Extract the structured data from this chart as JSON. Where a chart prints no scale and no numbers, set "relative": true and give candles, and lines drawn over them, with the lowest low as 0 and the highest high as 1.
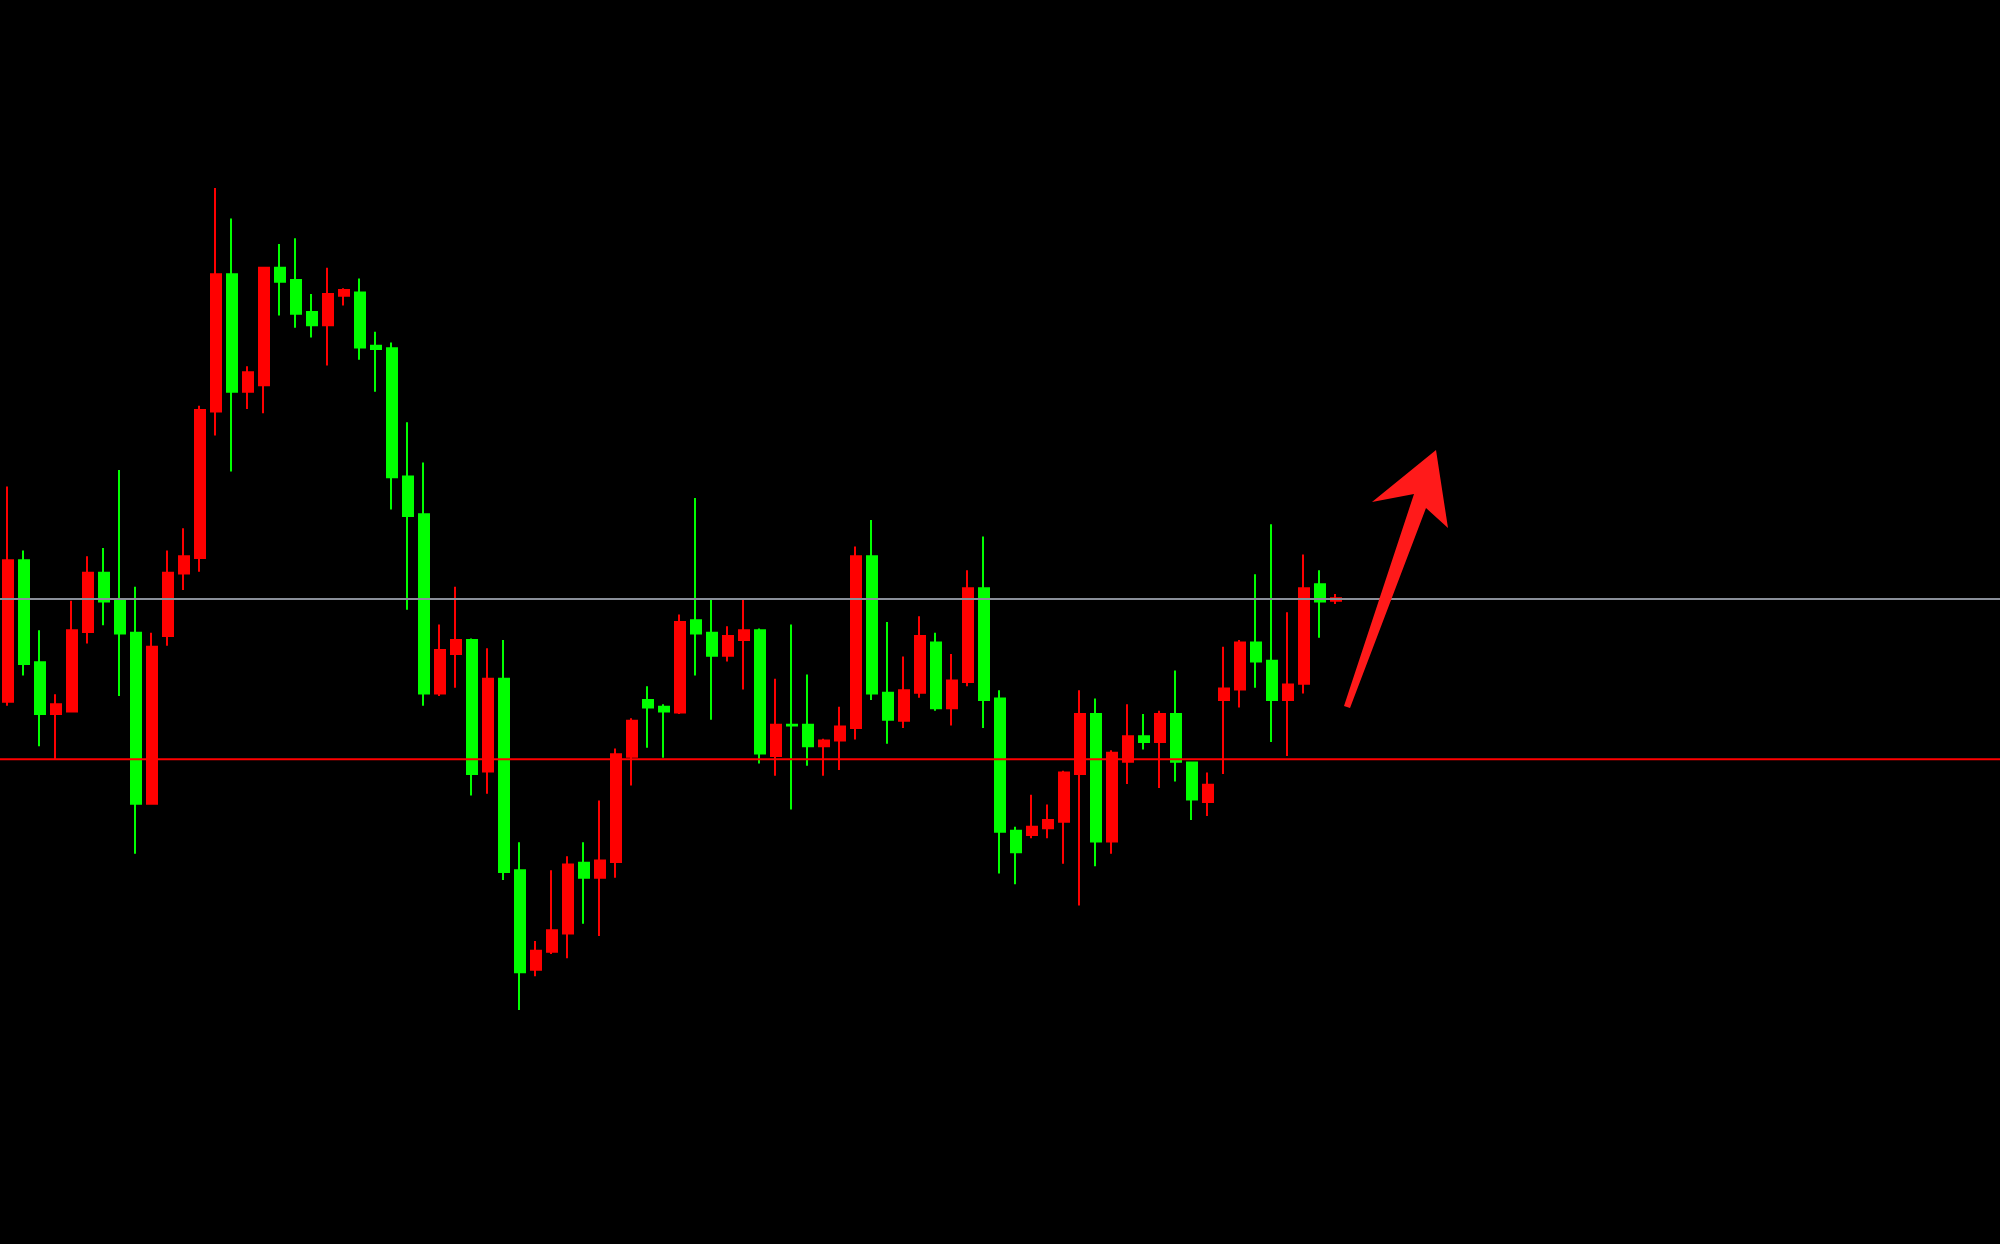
{
  "chart_data": {
    "type": "candlestick",
    "relative": true,
    "categories": [
      null,
      null,
      null,
      null,
      null,
      null,
      null,
      null,
      null,
      null,
      null,
      null,
      null,
      null,
      null,
      null,
      null,
      null,
      null,
      null,
      null,
      null,
      null,
      null,
      null,
      null,
      null,
      null,
      null,
      null,
      null,
      null,
      null,
      null,
      null,
      null,
      null,
      null,
      null,
      null,
      null,
      null,
      null,
      null,
      null,
      null,
      null,
      null,
      null,
      null,
      null,
      null,
      null,
      null,
      null,
      null,
      null,
      null,
      null,
      null,
      null,
      null,
      null,
      null,
      null,
      null,
      null,
      null,
      null,
      null,
      null,
      null,
      null,
      null,
      null,
      null,
      null,
      null,
      null,
      null,
      null,
      null,
      null,
      null
    ],
    "ohlc": [
      [
        0.375,
        0.637,
        0.37,
        0.547
      ],
      [
        0.547,
        0.559,
        0.407,
        0.421
      ],
      [
        0.423,
        0.462,
        0.321,
        0.36
      ],
      [
        0.36,
        0.384,
        0.305,
        0.372
      ],
      [
        0.363,
        0.498,
        0.363,
        0.462
      ],
      [
        0.46,
        0.552,
        0.446,
        0.532
      ],
      [
        0.532,
        0.562,
        0.468,
        0.497
      ],
      [
        0.498,
        0.657,
        0.382,
        0.458
      ],
      [
        0.459,
        0.515,
        0.19,
        0.251
      ],
      [
        0.251,
        0.459,
        0.251,
        0.442
      ],
      [
        0.455,
        0.559,
        0.443,
        0.532
      ],
      [
        0.531,
        0.586,
        0.511,
        0.552
      ],
      [
        0.55,
        0.735,
        0.533,
        0.73
      ],
      [
        0.728,
        1.0,
        0.699,
        0.895
      ],
      [
        0.895,
        0.963,
        0.655,
        0.752
      ],
      [
        0.752,
        0.783,
        0.731,
        0.776
      ],
      [
        0.76,
        0.903,
        0.726,
        0.903
      ],
      [
        0.903,
        0.932,
        0.845,
        0.886
      ],
      [
        0.888,
        0.939,
        0.83,
        0.847
      ],
      [
        0.849,
        0.871,
        0.818,
        0.833
      ],
      [
        0.833,
        0.903,
        0.784,
        0.871
      ],
      [
        0.869,
        0.878,
        0.857,
        0.876
      ],
      [
        0.873,
        0.89,
        0.791,
        0.806
      ],
      [
        0.808,
        0.825,
        0.752,
        0.804
      ],
      [
        0.805,
        0.812,
        0.609,
        0.648
      ],
      [
        0.649,
        0.715,
        0.487,
        0.601
      ],
      [
        0.603,
        0.666,
        0.37,
        0.385
      ],
      [
        0.385,
        0.469,
        0.382,
        0.438
      ],
      [
        0.433,
        0.515,
        0.392,
        0.45
      ],
      [
        0.45,
        0.452,
        0.261,
        0.287
      ],
      [
        0.29,
        0.44,
        0.263,
        0.403
      ],
      [
        0.403,
        0.45,
        0.158,
        0.168
      ],
      [
        0.17,
        0.204,
        0.0,
        0.046
      ],
      [
        0.049,
        0.084,
        0.041,
        0.072
      ],
      [
        0.071,
        0.17,
        0.068,
        0.097
      ],
      [
        0.093,
        0.187,
        0.063,
        0.177
      ],
      [
        0.179,
        0.204,
        0.105,
        0.161
      ],
      [
        0.161,
        0.255,
        0.09,
        0.182
      ],
      [
        0.18,
        0.318,
        0.161,
        0.311
      ],
      [
        0.308,
        0.355,
        0.273,
        0.352
      ],
      [
        0.377,
        0.394,
        0.319,
        0.368
      ],
      [
        0.369,
        0.372,
        0.307,
        0.363
      ],
      [
        0.362,
        0.481,
        0.36,
        0.472
      ],
      [
        0.474,
        0.623,
        0.407,
        0.458
      ],
      [
        0.459,
        0.501,
        0.353,
        0.431
      ],
      [
        0.431,
        0.467,
        0.424,
        0.455
      ],
      [
        0.45,
        0.501,
        0.39,
        0.462
      ],
      [
        0.462,
        0.464,
        0.3,
        0.312
      ],
      [
        0.309,
        0.403,
        0.285,
        0.347
      ],
      [
        0.347,
        0.469,
        0.244,
        0.346
      ],
      [
        0.347,
        0.408,
        0.297,
        0.321
      ],
      [
        0.321,
        0.33,
        0.285,
        0.328
      ],
      [
        0.328,
        0.369,
        0.292,
        0.345
      ],
      [
        0.343,
        0.564,
        0.329,
        0.552
      ],
      [
        0.552,
        0.596,
        0.377,
        0.385
      ],
      [
        0.386,
        0.472,
        0.324,
        0.353
      ],
      [
        0.352,
        0.43,
        0.343,
        0.389
      ],
      [
        0.386,
        0.479,
        0.38,
        0.455
      ],
      [
        0.447,
        0.459,
        0.364,
        0.367
      ],
      [
        0.367,
        0.433,
        0.346,
        0.401
      ],
      [
        0.399,
        0.535,
        0.394,
        0.513
      ],
      [
        0.513,
        0.576,
        0.343,
        0.377
      ],
      [
        0.379,
        0.389,
        0.166,
        0.217
      ],
      [
        0.218,
        0.223,
        0.153,
        0.192
      ],
      [
        0.213,
        0.262,
        0.209,
        0.223
      ],
      [
        0.221,
        0.25,
        0.209,
        0.231
      ],
      [
        0.229,
        0.291,
        0.178,
        0.289
      ],
      [
        0.287,
        0.389,
        0.127,
        0.36
      ],
      [
        0.36,
        0.379,
        0.175,
        0.205
      ],
      [
        0.205,
        0.316,
        0.19,
        0.313
      ],
      [
        0.302,
        0.372,
        0.275,
        0.333
      ],
      [
        0.333,
        0.36,
        0.317,
        0.326
      ],
      [
        0.326,
        0.364,
        0.27,
        0.36
      ],
      [
        0.36,
        0.413,
        0.278,
        0.302
      ],
      [
        0.301,
        0.301,
        0.231,
        0.256
      ],
      [
        0.253,
        0.289,
        0.236,
        0.274
      ],
      [
        0.377,
        0.442,
        0.287,
        0.391
      ],
      [
        0.39,
        0.45,
        0.368,
        0.447
      ],
      [
        0.447,
        0.53,
        0.392,
        0.424
      ],
      [
        0.425,
        0.591,
        0.326,
        0.377
      ],
      [
        0.377,
        0.484,
        0.309,
        0.396
      ],
      [
        0.397,
        0.554,
        0.385,
        0.513
      ],
      [
        0.518,
        0.535,
        0.453,
        0.497
      ],
      [
        0.498,
        0.506,
        0.494,
        0.501
      ]
    ],
    "colors": [
      "#ff0000",
      "#00ff00",
      "#00ff00",
      "#ff0000",
      "#ff0000",
      "#ff0000",
      "#00ff00",
      "#00ff00",
      "#00ff00",
      "#ff0000",
      "#ff0000",
      "#ff0000",
      "#ff0000",
      "#ff0000",
      "#00ff00",
      "#ff0000",
      "#ff0000",
      "#00ff00",
      "#00ff00",
      "#00ff00",
      "#ff0000",
      "#ff0000",
      "#00ff00",
      "#00ff00",
      "#00ff00",
      "#00ff00",
      "#00ff00",
      "#ff0000",
      "#ff0000",
      "#00ff00",
      "#ff0000",
      "#00ff00",
      "#00ff00",
      "#ff0000",
      "#ff0000",
      "#ff0000",
      "#00ff00",
      "#ff0000",
      "#ff0000",
      "#ff0000",
      "#00ff00",
      "#00ff00",
      "#ff0000",
      "#00ff00",
      "#00ff00",
      "#ff0000",
      "#ff0000",
      "#00ff00",
      "#ff0000",
      "#00ff00",
      "#00ff00",
      "#ff0000",
      "#ff0000",
      "#ff0000",
      "#00ff00",
      "#00ff00",
      "#ff0000",
      "#ff0000",
      "#00ff00",
      "#ff0000",
      "#ff0000",
      "#00ff00",
      "#00ff00",
      "#00ff00",
      "#ff0000",
      "#ff0000",
      "#ff0000",
      "#ff0000",
      "#00ff00",
      "#ff0000",
      "#ff0000",
      "#00ff00",
      "#ff0000",
      "#00ff00",
      "#00ff00",
      "#ff0000",
      "#ff0000",
      "#ff0000",
      "#00ff00",
      "#00ff00",
      "#ff0000",
      "#ff0000",
      "#00ff00",
      "#ff0000"
    ],
    "ref_lines": [
      {
        "axis": "y",
        "value": 0.5,
        "color": "#8a8f99"
      },
      {
        "axis": "y",
        "value": 0.305,
        "color": "#ff0000"
      }
    ]
  }
}
